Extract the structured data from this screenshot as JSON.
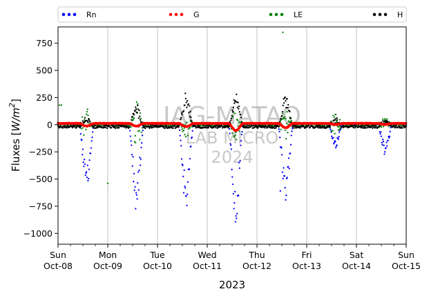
{
  "chart_data": {
    "type": "scatter",
    "xlabel": "2023",
    "ylabel_main": "Fluxes [",
    "ylabel_unit": "W/m",
    "ylabel_exp": "2",
    "ylabel_end": "]",
    "xlim": [
      0,
      7
    ],
    "ylim": [
      -1100,
      900
    ],
    "yticks": [
      -1000,
      -750,
      -500,
      -250,
      0,
      250,
      500,
      750
    ],
    "xticks": [
      {
        "x": 0,
        "day": "Sun",
        "date": "Oct-08"
      },
      {
        "x": 1,
        "day": "Mon",
        "date": "Oct-09"
      },
      {
        "x": 2,
        "day": "Tue",
        "date": "Oct-10"
      },
      {
        "x": 3,
        "day": "Wed",
        "date": "Oct-11"
      },
      {
        "x": 4,
        "day": "Thu",
        "date": "Oct-12"
      },
      {
        "x": 5,
        "day": "Fri",
        "date": "Oct-13"
      },
      {
        "x": 6,
        "day": "Sat",
        "date": "Oct-14"
      },
      {
        "x": 7,
        "day": "Sun",
        "date": "Oct-15"
      }
    ],
    "grid": "vertical",
    "legend_placement": "top",
    "watermark": [
      "IAG-MATAO",
      "LAB MICRO",
      "2024"
    ],
    "series": [
      {
        "name": "Rn",
        "color": "#0000ff",
        "daily_amplitude": [
          520,
          650,
          650,
          740,
          620,
          180,
          240
        ],
        "night_level": 10,
        "outliers": [
          [
            4.47,
            -610
          ]
        ]
      },
      {
        "name": "G",
        "color": "#ff0000",
        "daily_amplitude": [
          25,
          25,
          30,
          65,
          40,
          10,
          10
        ],
        "night_level": 12,
        "outliers": []
      },
      {
        "name": "LE",
        "color": "#008000",
        "daily_amplitude": [
          120,
          190,
          90,
          120,
          120,
          80,
          40
        ],
        "night_level": 0,
        "outliers": [
          [
            4.52,
            850
          ],
          [
            0.03,
            180
          ],
          [
            0.07,
            180
          ],
          [
            1.0,
            -540
          ]
        ]
      },
      {
        "name": "H",
        "color": "#000000",
        "daily_amplitude": [
          80,
          190,
          260,
          280,
          250,
          80,
          70
        ],
        "night_level": -20,
        "outliers": []
      }
    ]
  }
}
